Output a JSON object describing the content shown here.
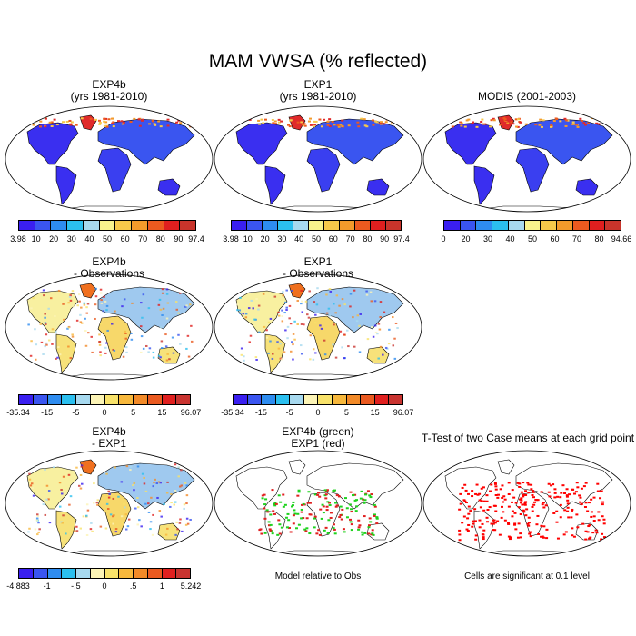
{
  "main_title": "MAM VWSA (% reflected)",
  "panels": [
    {
      "id": "exp4b",
      "title_lines": [
        "EXP4b",
        "(yrs 1981-2010)"
      ],
      "palette": "full",
      "cbar_labels": [
        "3.98",
        "10",
        "20",
        "30",
        "40",
        "50",
        "60",
        "70",
        "80",
        "90",
        "97.4"
      ]
    },
    {
      "id": "exp1",
      "title_lines": [
        "EXP1",
        "(yrs 1981-2010)"
      ],
      "palette": "full",
      "cbar_labels": [
        "3.98",
        "10",
        "20",
        "30",
        "40",
        "50",
        "60",
        "70",
        "80",
        "90",
        "97.4"
      ]
    },
    {
      "id": "modis",
      "title_lines": [
        "MODIS (2001-2003)"
      ],
      "palette": "full",
      "cbar_labels": [
        "0",
        "20",
        "30",
        "40",
        "50",
        "60",
        "70",
        "80",
        "94.66"
      ]
    },
    {
      "id": "exp4b_obs",
      "title_lines": [
        "EXP4b",
        "- Observations"
      ],
      "palette": "diff",
      "cbar_labels": [
        "-35.34",
        "-15",
        "-5",
        "0",
        "5",
        "15",
        "96.07"
      ]
    },
    {
      "id": "exp1_obs",
      "title_lines": [
        "EXP1",
        "- Observations"
      ],
      "palette": "diff",
      "cbar_labels": [
        "-35.34",
        "-15",
        "-5",
        "0",
        "5",
        "15",
        "96.07"
      ]
    },
    {
      "id": "exp4b_exp1",
      "title_lines": [
        "EXP4b",
        "- EXP1"
      ],
      "palette": "diff",
      "cbar_labels": [
        "-4.883",
        "-1",
        "-.5",
        "0",
        ".5",
        "1",
        "5.242"
      ]
    },
    {
      "id": "model_rel",
      "title_lines": [
        "EXP4b (green)",
        "EXP1 (red)"
      ],
      "palette": "binary",
      "note": "Model relative to Obs"
    },
    {
      "id": "ttest",
      "title_lines": [
        "T-Test of two Case means at each grid point"
      ],
      "palette": "sig",
      "note": "Cells are significant at 0.1 level"
    }
  ],
  "colors": {
    "full": [
      "#3a1ff0",
      "#3a55f0",
      "#2e8cf0",
      "#2bbfef",
      "#a7d9ef",
      "#f8f38c",
      "#f7c94a",
      "#f39a2b",
      "#ec5a1f",
      "#e01f1f",
      "#c9342b"
    ],
    "diff": [
      "#3a1ff0",
      "#3a55f0",
      "#2e8cf0",
      "#2bbfef",
      "#a7d9ef",
      "#fcf4b6",
      "#f8e26a",
      "#f7b83c",
      "#f28a28",
      "#ea5a20",
      "#e0201f",
      "#c93430"
    ],
    "ocean": "#ffffff",
    "coast": "#000000"
  }
}
